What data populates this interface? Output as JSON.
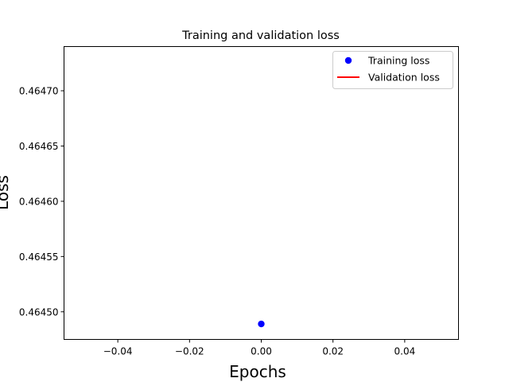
{
  "chart_data": {
    "type": "scatter",
    "title": "Training and validation loss",
    "xlabel": "Epochs",
    "ylabel": "Loss",
    "xlim": [
      -0.055,
      0.055
    ],
    "ylim": [
      0.464475,
      0.46474
    ],
    "xticks": [
      -0.04,
      -0.02,
      0.0,
      0.02,
      0.04
    ],
    "xtick_labels": [
      "−0.04",
      "−0.02",
      "0.00",
      "0.02",
      "0.04"
    ],
    "yticks": [
      0.4645,
      0.46455,
      0.4646,
      0.46465,
      0.4647
    ],
    "ytick_labels": [
      "0.46450",
      "0.46455",
      "0.46460",
      "0.46465",
      "0.46470"
    ],
    "grid": false,
    "legend_position": "top-right",
    "series": [
      {
        "name": "Training loss",
        "style": "marker",
        "color": "#0000ff",
        "x": [
          0.0
        ],
        "y": [
          0.464489
        ]
      },
      {
        "name": "Validation loss",
        "style": "line",
        "color": "#ff0000",
        "x": [
          0.0
        ],
        "y": [
          0.464488
        ]
      }
    ]
  }
}
